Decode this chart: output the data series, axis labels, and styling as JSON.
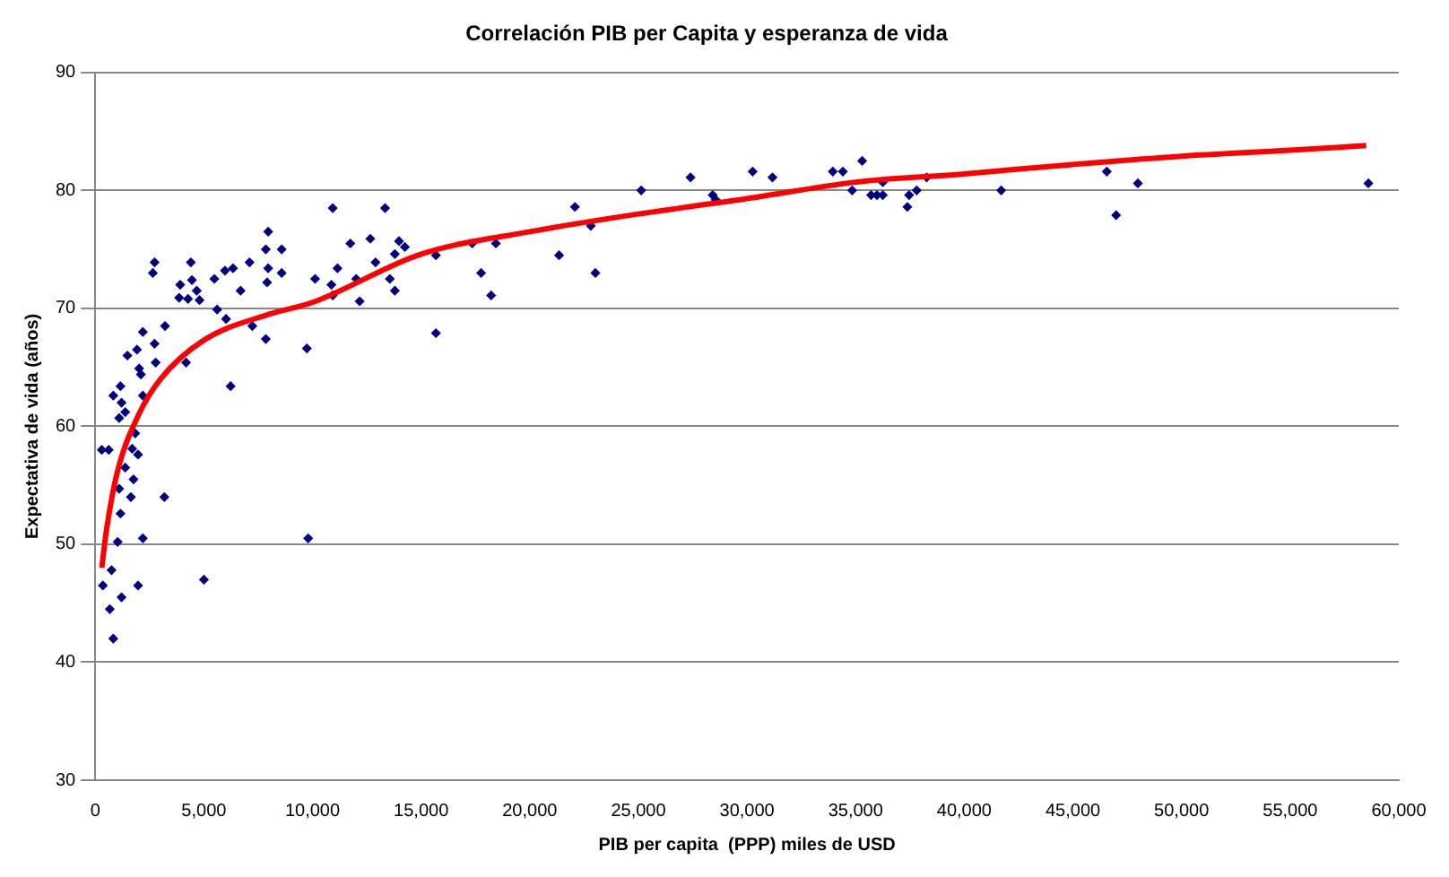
{
  "chart_data": {
    "type": "scatter",
    "title": "Correlación PIB per Capita y esperanza de vida",
    "xlabel": "PIB per capita  (PPP) miles de USD",
    "ylabel": "Expectativa de vida (años)",
    "xlim": [
      0,
      60000
    ],
    "ylim": [
      30,
      90
    ],
    "xticks": [
      0,
      {
        "value": 5000,
        "label": "5,000"
      },
      {
        "value": 10000,
        "label": "10,000"
      },
      {
        "value": 15000,
        "label": "15,000"
      },
      {
        "value": 20000,
        "label": "20,000"
      },
      {
        "value": 25000,
        "label": "25,000"
      },
      {
        "value": 30000,
        "label": "30,000"
      },
      {
        "value": 35000,
        "label": "35,000"
      },
      {
        "value": 40000,
        "label": "40,000"
      },
      {
        "value": 45000,
        "label": "45,000"
      },
      {
        "value": 50000,
        "label": "50,000"
      },
      {
        "value": 55000,
        "label": "55,000"
      },
      {
        "value": 60000,
        "label": "60,000"
      }
    ],
    "yticks": [
      30,
      40,
      50,
      60,
      70,
      80,
      90
    ],
    "grid": "y",
    "marker": "diamond",
    "series": [
      {
        "color": "#000080",
        "x": [
          350,
          750,
          670,
          830,
          1210,
          1970,
          1030,
          2190,
          1160,
          1100,
          1640,
          1380,
          1760,
          1970,
          300,
          620,
          1700,
          1840,
          1100,
          1380,
          1210,
          830,
          1160,
          2190,
          2100,
          2020,
          2780,
          1480,
          1920,
          3180,
          2190,
          2730,
          3210,
          2730,
          2650,
          3910,
          3860,
          4400,
          4450,
          4670,
          4800,
          4270,
          5480,
          5610,
          4180,
          5000,
          6230,
          6020,
          5970,
          6340,
          6690,
          7100,
          7230,
          7850,
          7960,
          7850,
          8580,
          7960,
          7910,
          8580,
          9740,
          9800,
          10120,
          10930,
          10930,
          11150,
          11740,
          12170,
          12660,
          13340,
          13560,
          13980,
          14250,
          13790,
          12900,
          10870,
          12010,
          13790,
          15680,
          15680,
          17350,
          17760,
          18220,
          18440,
          21350,
          22080,
          22810,
          23020,
          25130,
          27400,
          28420,
          28560,
          30260,
          31170,
          33950,
          34410,
          35300,
          34840,
          35710,
          35980,
          36250,
          36250,
          37380,
          37460,
          37810,
          38270,
          41700,
          46560,
          46990,
          47990,
          58600
        ],
        "values": [
          46.5,
          47.8,
          44.5,
          42.0,
          45.5,
          46.5,
          50.2,
          50.5,
          52.6,
          54.7,
          54.0,
          56.5,
          55.5,
          57.6,
          58.0,
          58.0,
          58.1,
          59.4,
          60.7,
          61.2,
          62.0,
          62.6,
          63.4,
          62.6,
          64.4,
          64.9,
          65.4,
          66.0,
          66.5,
          54.0,
          68.0,
          67.0,
          68.5,
          73.9,
          73.0,
          72.0,
          70.9,
          73.9,
          72.4,
          71.5,
          70.7,
          70.8,
          72.5,
          69.9,
          65.4,
          47.0,
          63.4,
          69.1,
          73.2,
          73.4,
          71.5,
          73.9,
          68.5,
          67.4,
          76.5,
          75.0,
          75.0,
          73.4,
          72.2,
          73.0,
          66.6,
          50.5,
          72.5,
          78.5,
          71.1,
          73.4,
          75.5,
          70.6,
          75.9,
          78.5,
          72.5,
          75.7,
          75.2,
          74.6,
          73.9,
          72.0,
          72.5,
          71.5,
          74.5,
          67.9,
          75.5,
          73.0,
          71.1,
          75.5,
          74.5,
          78.6,
          77.0,
          73.0,
          80.0,
          81.1,
          79.6,
          79.2,
          81.6,
          81.1,
          81.6,
          81.6,
          82.5,
          80.0,
          79.6,
          79.6,
          79.6,
          80.7,
          78.6,
          79.6,
          80.0,
          81.1,
          80.0,
          81.6,
          77.9,
          80.6,
          80.6
        ]
      },
      {
        "type": "line",
        "color": "#ff0000",
        "marker": "none",
        "x": [
          300,
          500,
          1000,
          2000,
          3000,
          5000,
          8000,
          10000,
          15000,
          20000,
          25000,
          30000,
          35000,
          40000,
          45000,
          50000,
          55000,
          58500
        ],
        "values": [
          48,
          51,
          56,
          61,
          64,
          67.3,
          69.5,
          70.5,
          74.6,
          76.5,
          78.0,
          79.3,
          80.7,
          81.4,
          82.2,
          82.9,
          83.4,
          83.8
        ]
      }
    ]
  }
}
